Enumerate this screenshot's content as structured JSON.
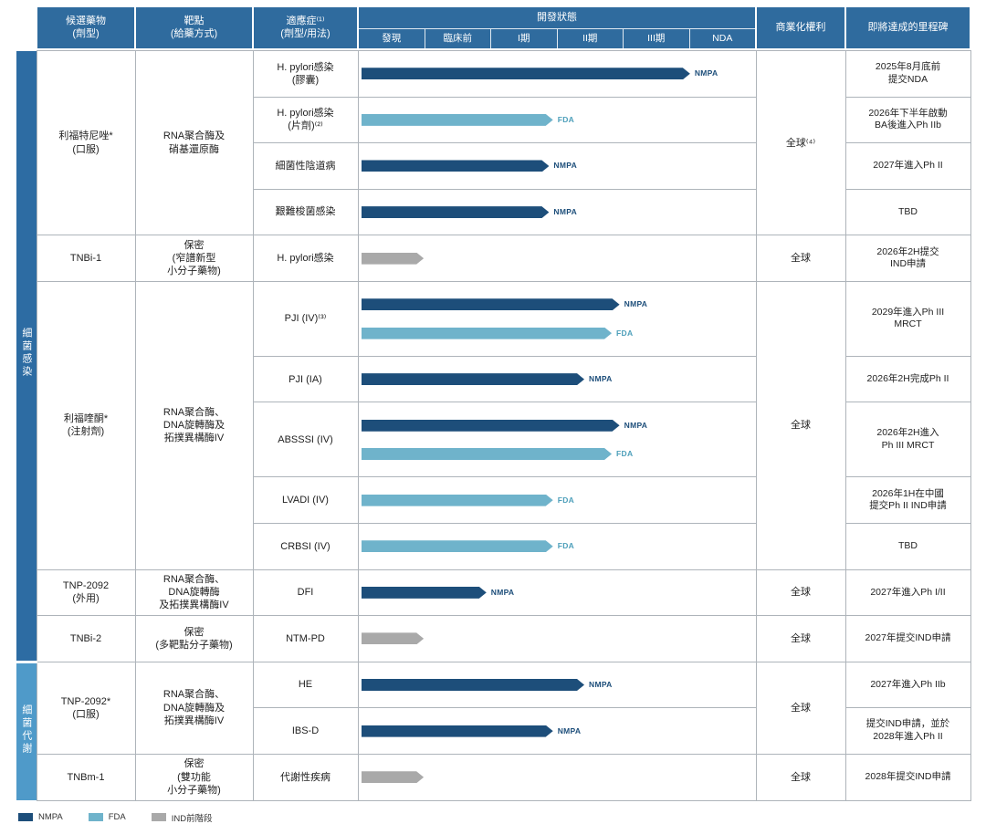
{
  "header": {
    "candidate": "候選藥物\n(劑型)",
    "target": "靶點\n(給藥方式)",
    "indication": "適應症⁽¹⁾\n(劑型/用法)",
    "status": "開發狀態",
    "rights": "商業化權利",
    "milestone": "即將達成的里程碑"
  },
  "chart_data": {
    "type": "bar",
    "title": "開發狀態",
    "stages": [
      "發現",
      "臨床前",
      "I期",
      "II期",
      "III期",
      "NDA"
    ],
    "categories": [
      {
        "label": "細菌感染",
        "row_count": 12,
        "color": "#2d6ca3"
      },
      {
        "label": "細菌代謝",
        "row_count": 3,
        "color": "#4f9ac9"
      }
    ],
    "groups": [
      {
        "drug": "利福特尼唑*\n(口服)",
        "target": "RNA聚合酶及\n硝基還原酶",
        "rights": "全球⁽⁴⁾"
      },
      {
        "drug": "TNBi-1",
        "target": "保密\n(窄譜新型\n小分子藥物)",
        "rights": "全球"
      },
      {
        "drug": "利福喹酮*\n(注射劑)",
        "target": "RNA聚合酶、\nDNA旋轉酶及\n拓撲異構酶IV",
        "rights": "全球"
      },
      {
        "drug": "TNP-2092\n(外用)",
        "target": "RNA聚合酶、\nDNA旋轉酶\n及拓撲異構酶IV",
        "rights": "全球"
      },
      {
        "drug": "TNBi-2",
        "target": "保密\n(多靶點分子藥物)",
        "rights": "全球"
      },
      {
        "drug": "TNP-2092*\n(口服)",
        "target": "RNA聚合酶、\nDNA旋轉酶及\n拓撲異構酶IV",
        "rights": "全球"
      },
      {
        "drug": "TNBm-1",
        "target": "保密\n(雙功能\n小分子藥物)",
        "rights": "全球"
      }
    ],
    "rows": [
      {
        "indication": "H. pylori感染\n(膠囊)",
        "bars": [
          {
            "type": "nmpa",
            "label": "NMPA",
            "pct": 84,
            "stage_reached": "NDA"
          }
        ],
        "milestone": "2025年8月底前\n提交NDA"
      },
      {
        "indication": "H. pylori感染\n(片劑)⁽²⁾",
        "bars": [
          {
            "type": "fda",
            "label": "FDA",
            "pct": 49,
            "stage_reached": "II期"
          }
        ],
        "milestone": "2026年下半年啟動\nBA後進入Ph IIb"
      },
      {
        "indication": "細菌性陰道病",
        "bars": [
          {
            "type": "nmpa",
            "label": "NMPA",
            "pct": 48,
            "stage_reached": "II期"
          }
        ],
        "milestone": "2027年進入Ph II"
      },
      {
        "indication": "艱難梭菌感染",
        "bars": [
          {
            "type": "nmpa",
            "label": "NMPA",
            "pct": 48,
            "stage_reached": "II期"
          }
        ],
        "milestone": "TBD"
      },
      {
        "indication": "H. pylori感染",
        "bars": [
          {
            "type": "pre",
            "pct": 16,
            "stage_reached": "發現"
          }
        ],
        "milestone": "2026年2H提交\nIND申請"
      },
      {
        "indication": "PJI (IV)⁽³⁾",
        "bars": [
          {
            "type": "nmpa",
            "label": "NMPA",
            "pct": 66,
            "stage_reached": "II期"
          },
          {
            "type": "fda",
            "label": "FDA",
            "pct": 64,
            "stage_reached": "II期"
          }
        ],
        "milestone": "2029年進入Ph III\nMRCT"
      },
      {
        "indication": "PJI (IA)",
        "bars": [
          {
            "type": "nmpa",
            "label": "NMPA",
            "pct": 57,
            "stage_reached": "II期"
          }
        ],
        "milestone": "2026年2H完成Ph II"
      },
      {
        "indication": "ABSSSI (IV)",
        "bars": [
          {
            "type": "nmpa",
            "label": "NMPA",
            "pct": 66,
            "stage_reached": "II期"
          },
          {
            "type": "fda",
            "label": "FDA",
            "pct": 64,
            "stage_reached": "II期"
          }
        ],
        "milestone": "2026年2H進入\nPh III MRCT"
      },
      {
        "indication": "LVADI (IV)",
        "bars": [
          {
            "type": "fda",
            "label": "FDA",
            "pct": 49,
            "stage_reached": "I期"
          }
        ],
        "milestone": "2026年1H在中國\n提交Ph II IND申請"
      },
      {
        "indication": "CRBSI (IV)",
        "bars": [
          {
            "type": "fda",
            "label": "FDA",
            "pct": 49,
            "stage_reached": "I期"
          }
        ],
        "milestone": "TBD"
      },
      {
        "indication": "DFI",
        "bars": [
          {
            "type": "nmpa",
            "label": "NMPA",
            "pct": 32,
            "stage_reached": "臨床前"
          }
        ],
        "milestone": "2027年進入Ph I/II"
      },
      {
        "indication": "NTM-PD",
        "bars": [
          {
            "type": "pre",
            "pct": 16,
            "stage_reached": "發現"
          }
        ],
        "milestone": "2027年提交IND申請"
      },
      {
        "indication": "HE",
        "bars": [
          {
            "type": "nmpa",
            "label": "NMPA",
            "pct": 57,
            "stage_reached": "II期"
          }
        ],
        "milestone": "2027年進入Ph IIb"
      },
      {
        "indication": "IBS-D",
        "bars": [
          {
            "type": "nmpa",
            "label": "NMPA",
            "pct": 49,
            "stage_reached": "I期"
          }
        ],
        "milestone": "提交IND申請，並於\n2028年進入Ph II"
      },
      {
        "indication": "代謝性疾病",
        "bars": [
          {
            "type": "pre",
            "pct": 16,
            "stage_reached": "發現"
          }
        ],
        "milestone": "2028年提交IND申請"
      }
    ]
  },
  "legend": [
    {
      "label": "NMPA",
      "color": "#1d4e7a"
    },
    {
      "label": "FDA",
      "color": "#6fb3cb"
    },
    {
      "label": "IND前階段",
      "color": "#a9a9a9"
    }
  ],
  "colors": {
    "header": "#2f6b9e",
    "nmpa": "#1d4e7a",
    "fda": "#6fb3cb",
    "pre": "#a9a9a9"
  }
}
